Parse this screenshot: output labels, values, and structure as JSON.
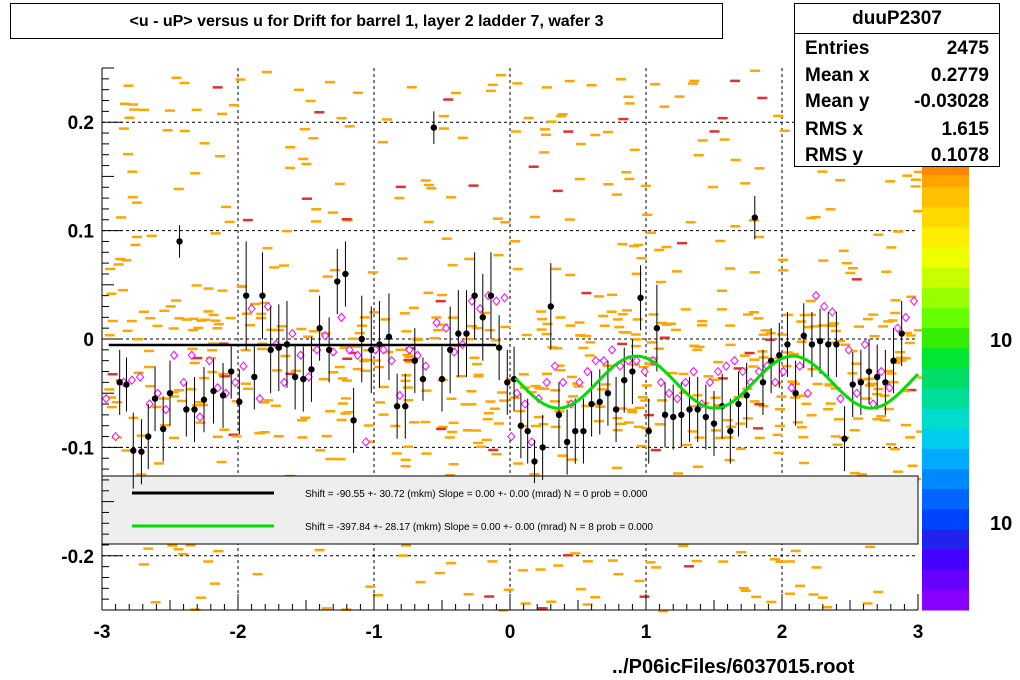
{
  "title": "<u - uP>       versus   u for Drift for barrel 1, layer 2 ladder 7, wafer 3",
  "stats": {
    "name": "duuP2307",
    "rows": [
      {
        "label": "Entries",
        "value": "2475"
      },
      {
        "label": "Mean x",
        "value": "0.2779"
      },
      {
        "label": "Mean y",
        "value": "-0.03028"
      },
      {
        "label": "RMS x",
        "value": "1.615"
      },
      {
        "label": "RMS y",
        "value": "0.1078"
      }
    ]
  },
  "footer": "../P06icFiles/6037015.root",
  "palette_labels": [
    "10",
    "10"
  ],
  "legend": [
    {
      "color": "#000000",
      "text": "Shift =   -90.55 +- 30.72 (mkm) Slope =    0.00 +- 0.00 (mrad)  N = 0 prob = 0.000"
    },
    {
      "color": "#00dd00",
      "text": "Shift =  -397.84 +- 28.17 (mkm) Slope =    0.00 +- 0.00 (mrad)  N = 8 prob = 0.000"
    }
  ],
  "chart_data": {
    "type": "scatter",
    "title": "<u - uP>       versus   u for Drift for barrel 1, layer 2 ladder 7, wafer 3",
    "xlim": [
      -3,
      3
    ],
    "ylim": [
      -0.25,
      0.25
    ],
    "x_ticks": [
      -3,
      -2,
      -1,
      0,
      1,
      2,
      3
    ],
    "y_ticks": [
      -0.2,
      -0.1,
      0,
      0.1,
      0.2
    ],
    "grid": true,
    "colors": {
      "density_low": "#ffa500",
      "density_high": "#e03030",
      "profile_point": "#000000",
      "mean_point": "#ff00ff",
      "fit_black": "#000000",
      "fit_green": "#00dd00"
    },
    "profile_points": [
      {
        "x": -2.87,
        "y": -0.04,
        "e": 0.03
      },
      {
        "x": -2.82,
        "y": -0.042,
        "e": 0.025
      },
      {
        "x": -2.77,
        "y": -0.103,
        "e": 0.035
      },
      {
        "x": -2.71,
        "y": -0.104,
        "e": 0.03
      },
      {
        "x": -2.66,
        "y": -0.09,
        "e": 0.03
      },
      {
        "x": -2.61,
        "y": -0.055,
        "e": 0.03
      },
      {
        "x": -2.55,
        "y": -0.083,
        "e": 0.03
      },
      {
        "x": -2.5,
        "y": -0.05,
        "e": 0.03
      },
      {
        "x": -2.43,
        "y": 0.09,
        "e": 0.015
      },
      {
        "x": -2.38,
        "y": -0.065,
        "e": 0.025
      },
      {
        "x": -2.32,
        "y": -0.065,
        "e": 0.03
      },
      {
        "x": -2.25,
        "y": -0.056,
        "e": 0.03
      },
      {
        "x": -2.18,
        "y": -0.048,
        "e": 0.03
      },
      {
        "x": -2.11,
        "y": -0.052,
        "e": 0.03
      },
      {
        "x": -2.05,
        "y": -0.03,
        "e": 0.025
      },
      {
        "x": -1.99,
        "y": -0.058,
        "e": 0.03
      },
      {
        "x": -1.94,
        "y": 0.04,
        "e": 0.05
      },
      {
        "x": -1.88,
        "y": -0.035,
        "e": 0.03
      },
      {
        "x": -1.82,
        "y": 0.04,
        "e": 0.04
      },
      {
        "x": -1.76,
        "y": -0.01,
        "e": 0.04
      },
      {
        "x": -1.7,
        "y": -0.008,
        "e": 0.04
      },
      {
        "x": -1.64,
        "y": -0.005,
        "e": 0.04
      },
      {
        "x": -1.58,
        "y": -0.035,
        "e": 0.03
      },
      {
        "x": -1.52,
        "y": -0.037,
        "e": 0.03
      },
      {
        "x": -1.46,
        "y": -0.028,
        "e": 0.03
      },
      {
        "x": -1.4,
        "y": 0.01,
        "e": 0.03
      },
      {
        "x": -1.33,
        "y": -0.01,
        "e": 0.03
      },
      {
        "x": -1.27,
        "y": 0.053,
        "e": 0.03
      },
      {
        "x": -1.21,
        "y": 0.06,
        "e": 0.03
      },
      {
        "x": -1.15,
        "y": -0.075,
        "e": 0.03
      },
      {
        "x": -1.09,
        "y": 0.0,
        "e": 0.04
      },
      {
        "x": -1.02,
        "y": -0.01,
        "e": 0.04
      },
      {
        "x": -0.96,
        "y": -0.005,
        "e": 0.04
      },
      {
        "x": -0.89,
        "y": 0.002,
        "e": 0.04
      },
      {
        "x": -0.83,
        "y": -0.062,
        "e": 0.03
      },
      {
        "x": -0.77,
        "y": -0.062,
        "e": 0.03
      },
      {
        "x": -0.7,
        "y": -0.02,
        "e": 0.03
      },
      {
        "x": -0.64,
        "y": -0.037,
        "e": 0.02
      },
      {
        "x": -0.56,
        "y": 0.195,
        "e": 0.015
      },
      {
        "x": -0.5,
        "y": -0.037,
        "e": 0.03
      },
      {
        "x": -0.44,
        "y": -0.01,
        "e": 0.04
      },
      {
        "x": -0.38,
        "y": 0.005,
        "e": 0.04
      },
      {
        "x": -0.32,
        "y": 0.005,
        "e": 0.04
      },
      {
        "x": -0.26,
        "y": 0.04,
        "e": 0.04
      },
      {
        "x": -0.2,
        "y": 0.02,
        "e": 0.04
      },
      {
        "x": -0.14,
        "y": 0.04,
        "e": 0.04
      },
      {
        "x": -0.08,
        "y": -0.008,
        "e": 0.03
      },
      {
        "x": -0.02,
        "y": -0.04,
        "e": 0.03
      },
      {
        "x": 0.03,
        "y": -0.037,
        "e": 0.03
      },
      {
        "x": 0.08,
        "y": -0.08,
        "e": 0.03
      },
      {
        "x": 0.13,
        "y": -0.085,
        "e": 0.03
      },
      {
        "x": 0.18,
        "y": -0.113,
        "e": 0.02
      },
      {
        "x": 0.24,
        "y": -0.1,
        "e": 0.03
      },
      {
        "x": 0.3,
        "y": 0.03,
        "e": 0.04
      },
      {
        "x": 0.36,
        "y": -0.07,
        "e": 0.03
      },
      {
        "x": 0.42,
        "y": -0.095,
        "e": 0.03
      },
      {
        "x": 0.48,
        "y": -0.085,
        "e": 0.03
      },
      {
        "x": 0.54,
        "y": -0.085,
        "e": 0.03
      },
      {
        "x": 0.6,
        "y": -0.06,
        "e": 0.03
      },
      {
        "x": 0.66,
        "y": -0.058,
        "e": 0.03
      },
      {
        "x": 0.72,
        "y": -0.05,
        "e": 0.03
      },
      {
        "x": 0.78,
        "y": -0.065,
        "e": 0.03
      },
      {
        "x": 0.84,
        "y": -0.038,
        "e": 0.03
      },
      {
        "x": 0.9,
        "y": -0.03,
        "e": 0.03
      },
      {
        "x": 0.96,
        "y": 0.038,
        "e": 0.03
      },
      {
        "x": 1.02,
        "y": -0.085,
        "e": 0.03
      },
      {
        "x": 1.08,
        "y": 0.01,
        "e": 0.04
      },
      {
        "x": 1.14,
        "y": -0.07,
        "e": 0.03
      },
      {
        "x": 1.2,
        "y": -0.072,
        "e": 0.03
      },
      {
        "x": 1.26,
        "y": -0.07,
        "e": 0.03
      },
      {
        "x": 1.32,
        "y": -0.065,
        "e": 0.03
      },
      {
        "x": 1.38,
        "y": -0.065,
        "e": 0.03
      },
      {
        "x": 1.44,
        "y": -0.072,
        "e": 0.03
      },
      {
        "x": 1.5,
        "y": -0.078,
        "e": 0.03
      },
      {
        "x": 1.56,
        "y": -0.062,
        "e": 0.03
      },
      {
        "x": 1.62,
        "y": -0.085,
        "e": 0.03
      },
      {
        "x": 1.68,
        "y": -0.06,
        "e": 0.03
      },
      {
        "x": 1.74,
        "y": -0.052,
        "e": 0.03
      },
      {
        "x": 1.8,
        "y": 0.112,
        "e": 0.02
      },
      {
        "x": 1.86,
        "y": -0.04,
        "e": 0.03
      },
      {
        "x": 1.92,
        "y": -0.02,
        "e": 0.03
      },
      {
        "x": 1.98,
        "y": -0.015,
        "e": 0.03
      },
      {
        "x": 2.04,
        "y": -0.005,
        "e": 0.03
      },
      {
        "x": 2.1,
        "y": -0.05,
        "e": 0.03
      },
      {
        "x": 2.16,
        "y": 0.003,
        "e": 0.03
      },
      {
        "x": 2.22,
        "y": -0.005,
        "e": 0.03
      },
      {
        "x": 2.28,
        "y": -0.002,
        "e": 0.03
      },
      {
        "x": 2.34,
        "y": -0.005,
        "e": 0.03
      },
      {
        "x": 2.4,
        "y": -0.005,
        "e": 0.03
      },
      {
        "x": 2.46,
        "y": -0.092,
        "e": 0.03
      },
      {
        "x": 2.52,
        "y": -0.042,
        "e": 0.03
      },
      {
        "x": 2.58,
        "y": -0.04,
        "e": 0.03
      },
      {
        "x": 2.64,
        "y": -0.03,
        "e": 0.03
      },
      {
        "x": 2.7,
        "y": -0.035,
        "e": 0.03
      },
      {
        "x": 2.76,
        "y": -0.04,
        "e": 0.03
      },
      {
        "x": 2.82,
        "y": -0.02,
        "e": 0.03
      },
      {
        "x": 2.88,
        "y": 0.005,
        "e": 0.03
      }
    ],
    "mean_points": [
      {
        "x": -2.97,
        "y": -0.055
      },
      {
        "x": -2.9,
        "y": -0.09
      },
      {
        "x": -2.84,
        "y": -0.04
      },
      {
        "x": -2.78,
        "y": -0.038
      },
      {
        "x": -2.72,
        "y": -0.035
      },
      {
        "x": -2.65,
        "y": -0.06
      },
      {
        "x": -2.59,
        "y": -0.05
      },
      {
        "x": -2.53,
        "y": -0.065
      },
      {
        "x": -2.47,
        "y": -0.015
      },
      {
        "x": -2.4,
        "y": -0.04
      },
      {
        "x": -2.34,
        "y": -0.015
      },
      {
        "x": -2.28,
        "y": -0.072
      },
      {
        "x": -2.21,
        "y": -0.02
      },
      {
        "x": -2.15,
        "y": -0.045
      },
      {
        "x": -2.09,
        "y": -0.05
      },
      {
        "x": -2.02,
        "y": -0.04
      },
      {
        "x": -1.96,
        "y": -0.025
      },
      {
        "x": -1.9,
        "y": 0.028
      },
      {
        "x": -1.84,
        "y": -0.055
      },
      {
        "x": -1.78,
        "y": 0.03
      },
      {
        "x": -1.72,
        "y": -0.005
      },
      {
        "x": -1.66,
        "y": -0.04
      },
      {
        "x": -1.6,
        "y": 0.005
      },
      {
        "x": -1.54,
        "y": -0.015
      },
      {
        "x": -1.48,
        "y": -0.035
      },
      {
        "x": -1.42,
        "y": -0.01
      },
      {
        "x": -1.36,
        "y": 0.003
      },
      {
        "x": -1.3,
        "y": -0.012
      },
      {
        "x": -1.24,
        "y": 0.02
      },
      {
        "x": -1.18,
        "y": -0.01
      },
      {
        "x": -1.12,
        "y": -0.015
      },
      {
        "x": -1.06,
        "y": -0.095
      },
      {
        "x": -0.99,
        "y": -0.01
      },
      {
        "x": -0.93,
        "y": -0.01
      },
      {
        "x": -0.87,
        "y": -0.02
      },
      {
        "x": -0.81,
        "y": -0.052
      },
      {
        "x": -0.74,
        "y": -0.01
      },
      {
        "x": -0.68,
        "y": -0.015
      },
      {
        "x": -0.62,
        "y": -0.025
      },
      {
        "x": -0.54,
        "y": 0.015
      },
      {
        "x": -0.47,
        "y": 0.01
      },
      {
        "x": -0.41,
        "y": -0.012
      },
      {
        "x": -0.35,
        "y": -0.005
      },
      {
        "x": -0.28,
        "y": 0.035
      },
      {
        "x": -0.22,
        "y": 0.028
      },
      {
        "x": -0.16,
        "y": 0.04
      },
      {
        "x": -0.1,
        "y": 0.035
      },
      {
        "x": -0.04,
        "y": 0.038
      },
      {
        "x": 0.01,
        "y": -0.09
      },
      {
        "x": 0.05,
        "y": -0.05
      },
      {
        "x": 0.11,
        "y": -0.06
      },
      {
        "x": 0.16,
        "y": -0.095
      },
      {
        "x": 0.21,
        "y": -0.055
      },
      {
        "x": 0.27,
        "y": -0.04
      },
      {
        "x": 0.33,
        "y": -0.025
      },
      {
        "x": 0.39,
        "y": -0.04
      },
      {
        "x": 0.45,
        "y": -0.06
      },
      {
        "x": 0.51,
        "y": -0.04
      },
      {
        "x": 0.57,
        "y": -0.03
      },
      {
        "x": 0.63,
        "y": -0.02
      },
      {
        "x": 0.69,
        "y": -0.02
      },
      {
        "x": 0.75,
        "y": -0.01
      },
      {
        "x": 0.81,
        "y": -0.025
      },
      {
        "x": 0.87,
        "y": -0.02
      },
      {
        "x": 0.93,
        "y": -0.02
      },
      {
        "x": 0.99,
        "y": -0.03
      },
      {
        "x": 1.05,
        "y": -0.02
      },
      {
        "x": 1.11,
        "y": -0.04
      },
      {
        "x": 1.17,
        "y": -0.05
      },
      {
        "x": 1.23,
        "y": -0.055
      },
      {
        "x": 1.29,
        "y": -0.04
      },
      {
        "x": 1.35,
        "y": -0.03
      },
      {
        "x": 1.41,
        "y": -0.06
      },
      {
        "x": 1.47,
        "y": -0.04
      },
      {
        "x": 1.53,
        "y": -0.03
      },
      {
        "x": 1.59,
        "y": -0.025
      },
      {
        "x": 1.65,
        "y": -0.02
      },
      {
        "x": 1.71,
        "y": -0.03
      },
      {
        "x": 1.77,
        "y": -0.04
      },
      {
        "x": 1.83,
        "y": -0.03
      },
      {
        "x": 1.89,
        "y": -0.025
      },
      {
        "x": 1.95,
        "y": -0.04
      },
      {
        "x": 2.01,
        "y": -0.03
      },
      {
        "x": 2.07,
        "y": -0.045
      },
      {
        "x": 2.13,
        "y": -0.025
      },
      {
        "x": 2.19,
        "y": -0.05
      },
      {
        "x": 2.25,
        "y": 0.04
      },
      {
        "x": 2.31,
        "y": 0.03
      },
      {
        "x": 2.37,
        "y": 0.025
      },
      {
        "x": 2.43,
        "y": -0.055
      },
      {
        "x": 2.49,
        "y": -0.01
      },
      {
        "x": 2.55,
        "y": -0.05
      },
      {
        "x": 2.61,
        "y": -0.005
      },
      {
        "x": 2.67,
        "y": -0.06
      },
      {
        "x": 2.73,
        "y": -0.03
      },
      {
        "x": 2.79,
        "y": -0.045
      },
      {
        "x": 2.85,
        "y": 0.01
      },
      {
        "x": 2.91,
        "y": 0.02
      },
      {
        "x": 2.97,
        "y": 0.035
      }
    ],
    "fit_black": {
      "x": [
        -2.95,
        -0.1
      ],
      "y": -0.0055
    },
    "fit_green": {
      "x_range": [
        0.04,
        3.0
      ],
      "offset": -0.0398,
      "amplitude": 0.024,
      "period": 1.15,
      "peak_x": 0.93
    }
  }
}
